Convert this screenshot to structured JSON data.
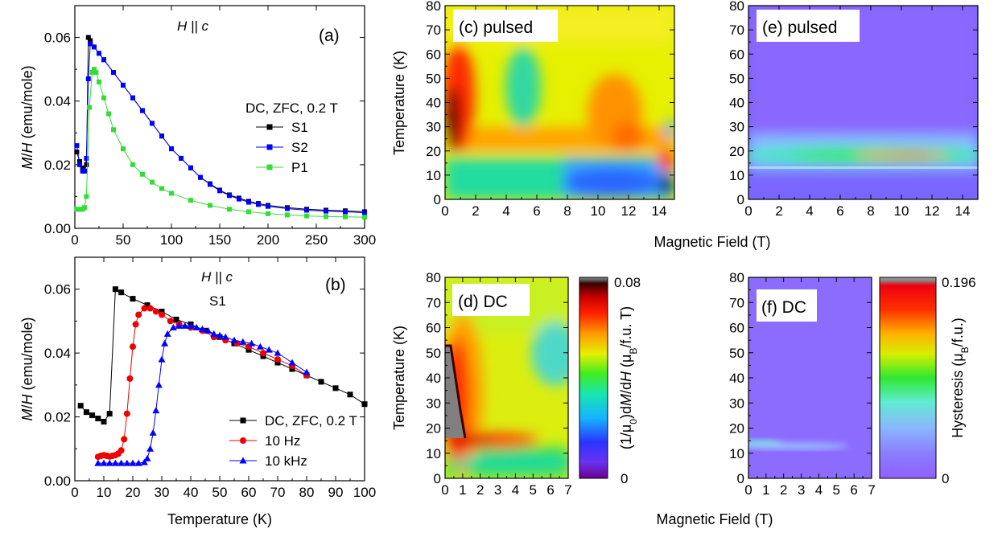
{
  "chart_data": [
    {
      "id": "a",
      "type": "line",
      "panel_label": "(a)",
      "annotation": "H || c",
      "legend_title": "DC, ZFC, 0.2 T",
      "legend_placement": "middle-right",
      "xlabel": "",
      "ylabel": "M/H (emu/mole)",
      "xlim": [
        0,
        300
      ],
      "ylim": [
        0,
        0.07
      ],
      "xticks": [
        "0",
        "50",
        "100",
        "150",
        "200",
        "250",
        "300"
      ],
      "yticks": [
        "0.00",
        "0.02",
        "0.04",
        "0.06"
      ],
      "series": [
        {
          "name": "S1",
          "color": "#000000",
          "marker": "square",
          "x": [
            2,
            5,
            8,
            10,
            12,
            14,
            16,
            20,
            25,
            30,
            40,
            50,
            60,
            70,
            80,
            90,
            100,
            110,
            120,
            130,
            140,
            150,
            160,
            170,
            180,
            190,
            200,
            220,
            240,
            260,
            280,
            300
          ],
          "y": [
            0.024,
            0.021,
            0.019,
            0.018,
            0.02,
            0.06,
            0.059,
            0.057,
            0.055,
            0.053,
            0.049,
            0.045,
            0.041,
            0.037,
            0.033,
            0.029,
            0.025,
            0.022,
            0.019,
            0.016,
            0.014,
            0.012,
            0.0105,
            0.0095,
            0.0085,
            0.0078,
            0.0072,
            0.0065,
            0.006,
            0.0057,
            0.0055,
            0.0052
          ]
        },
        {
          "name": "S2",
          "color": "#0000ff",
          "marker": "square",
          "x": [
            2,
            5,
            8,
            10,
            12,
            14,
            16,
            20,
            25,
            30,
            40,
            50,
            60,
            70,
            80,
            90,
            100,
            110,
            120,
            130,
            140,
            150,
            160,
            170,
            180,
            190,
            200,
            220,
            240,
            260,
            280,
            300
          ],
          "y": [
            0.026,
            0.02,
            0.018,
            0.018,
            0.022,
            0.047,
            0.058,
            0.057,
            0.055,
            0.053,
            0.049,
            0.045,
            0.041,
            0.037,
            0.033,
            0.029,
            0.025,
            0.022,
            0.019,
            0.016,
            0.0138,
            0.0118,
            0.0103,
            0.0092,
            0.0082,
            0.0075,
            0.0069,
            0.0062,
            0.0057,
            0.0054,
            0.0052,
            0.0049
          ]
        },
        {
          "name": "P1",
          "color": "#33dd33",
          "marker": "square",
          "x": [
            2,
            5,
            8,
            10,
            12,
            15,
            18,
            20,
            22,
            25,
            30,
            35,
            40,
            50,
            60,
            70,
            80,
            90,
            100,
            120,
            140,
            160,
            180,
            200,
            220,
            240,
            260,
            280,
            300
          ],
          "y": [
            0.006,
            0.006,
            0.006,
            0.0065,
            0.01,
            0.038,
            0.049,
            0.05,
            0.049,
            0.046,
            0.041,
            0.036,
            0.031,
            0.025,
            0.02,
            0.017,
            0.0145,
            0.0125,
            0.011,
            0.0088,
            0.0072,
            0.006,
            0.0052,
            0.0046,
            0.0042,
            0.0039,
            0.0037,
            0.0036,
            0.0035
          ]
        }
      ]
    },
    {
      "id": "b",
      "type": "line",
      "panel_label": "(b)",
      "annotation": "H || c",
      "annotation2": "S1",
      "legend_placement": "lower-right",
      "xlabel": "Temperature (K)",
      "ylabel": "M/H (emu/mole)",
      "xlim": [
        0,
        100
      ],
      "ylim": [
        0,
        0.07
      ],
      "xticks": [
        "0",
        "10",
        "20",
        "30",
        "40",
        "50",
        "60",
        "70",
        "80",
        "90",
        "100"
      ],
      "yticks": [
        "0.00",
        "0.02",
        "0.04",
        "0.06"
      ],
      "series": [
        {
          "name": "DC, ZFC, 0.2 T",
          "color": "#000000",
          "marker": "square",
          "x": [
            2,
            4,
            6,
            8,
            10,
            12,
            14,
            16,
            20,
            25,
            30,
            35,
            40,
            45,
            50,
            55,
            60,
            65,
            70,
            75,
            80,
            85,
            90,
            95,
            100
          ],
          "y": [
            0.0235,
            0.0215,
            0.0205,
            0.0195,
            0.0185,
            0.021,
            0.06,
            0.059,
            0.057,
            0.055,
            0.053,
            0.0505,
            0.049,
            0.047,
            0.045,
            0.043,
            0.041,
            0.039,
            0.037,
            0.035,
            0.033,
            0.031,
            0.029,
            0.027,
            0.024
          ]
        },
        {
          "name": "10 Hz",
          "color": "#ee0000",
          "marker": "circle",
          "x": [
            8,
            9,
            10,
            11,
            12,
            13,
            14,
            15,
            16,
            17,
            18,
            19,
            20,
            21,
            22,
            24,
            26,
            28,
            30,
            33,
            36,
            40,
            44,
            48,
            52,
            56,
            60,
            65,
            70,
            75,
            80
          ],
          "y": [
            0.0075,
            0.0078,
            0.008,
            0.0078,
            0.0076,
            0.0078,
            0.008,
            0.0085,
            0.0095,
            0.013,
            0.021,
            0.032,
            0.042,
            0.049,
            0.052,
            0.054,
            0.054,
            0.053,
            0.052,
            0.05,
            0.049,
            0.048,
            0.047,
            0.045,
            0.044,
            0.043,
            0.042,
            0.04,
            0.038,
            0.036,
            0.033
          ]
        },
        {
          "name": "10 kHz",
          "color": "#0000ff",
          "marker": "triangle",
          "x": [
            8,
            10,
            12,
            14,
            16,
            18,
            20,
            22,
            24,
            25,
            26,
            27,
            28,
            29,
            30,
            31,
            32,
            34,
            36,
            38,
            40,
            42,
            44,
            46,
            48,
            50,
            52,
            55,
            58,
            61,
            64,
            67,
            70,
            75,
            80
          ],
          "y": [
            0.0055,
            0.0055,
            0.0055,
            0.0055,
            0.0055,
            0.0055,
            0.0055,
            0.0055,
            0.0058,
            0.007,
            0.01,
            0.015,
            0.022,
            0.03,
            0.038,
            0.043,
            0.046,
            0.048,
            0.0485,
            0.0485,
            0.0485,
            0.048,
            0.0475,
            0.047,
            0.046,
            0.0455,
            0.045,
            0.044,
            0.0435,
            0.043,
            0.042,
            0.041,
            0.04,
            0.037,
            0.034
          ]
        }
      ]
    },
    {
      "id": "c",
      "type": "heatmap",
      "panel_label": "(c) pulsed",
      "xlabel": "",
      "ylabel": "Temperature (K)",
      "xlim": [
        0,
        15
      ],
      "ylim": [
        0,
        80
      ],
      "xticks": [
        "0",
        "2",
        "4",
        "6",
        "8",
        "10",
        "12",
        "14"
      ],
      "yticks": [
        "0",
        "10",
        "20",
        "30",
        "40",
        "50",
        "60",
        "70",
        "80"
      ],
      "colorscale": "dmdh"
    },
    {
      "id": "e",
      "type": "heatmap",
      "panel_label": "(e) pulsed",
      "xlabel": "",
      "ylabel": "",
      "xlim": [
        0,
        15
      ],
      "ylim": [
        0,
        80
      ],
      "xticks": [
        "0",
        "2",
        "4",
        "6",
        "8",
        "10",
        "12",
        "14"
      ],
      "yticks": [
        "0",
        "10",
        "20",
        "30",
        "40",
        "50",
        "60",
        "70",
        "80"
      ],
      "colorscale": "hysteresis"
    },
    {
      "id": "d",
      "type": "heatmap",
      "panel_label": "(d) DC",
      "xlabel": "",
      "ylabel": "Temperature (K)",
      "xlim": [
        0,
        7
      ],
      "ylim": [
        0,
        80
      ],
      "xticks": [
        "0",
        "1",
        "2",
        "3",
        "4",
        "5",
        "6",
        "7"
      ],
      "yticks": [
        "0",
        "10",
        "20",
        "30",
        "40",
        "50",
        "60",
        "70",
        "80"
      ],
      "colorbar": {
        "label": "(1/μ0)dM/dH (μB/f.u. T)",
        "min_label": "0",
        "max_label": "0.08"
      },
      "colorscale": "dmdh"
    },
    {
      "id": "f",
      "type": "heatmap",
      "panel_label": "(f) DC",
      "xlabel": "",
      "ylabel": "",
      "xlim": [
        0,
        7
      ],
      "ylim": [
        0,
        80
      ],
      "xticks": [
        "0",
        "1",
        "2",
        "3",
        "4",
        "5",
        "6",
        "7"
      ],
      "yticks": [
        "0",
        "10",
        "20",
        "30",
        "40",
        "50",
        "60",
        "70",
        "80"
      ],
      "colorbar": {
        "label": "Hysteresis (μB/f.u.)",
        "min_label": "0",
        "max_label": "0.196"
      },
      "colorscale": "hysteresis"
    }
  ],
  "shared_labels": {
    "field_top": "Magnetic Field (T)",
    "field_bottom": "Magnetic Field (T)"
  }
}
